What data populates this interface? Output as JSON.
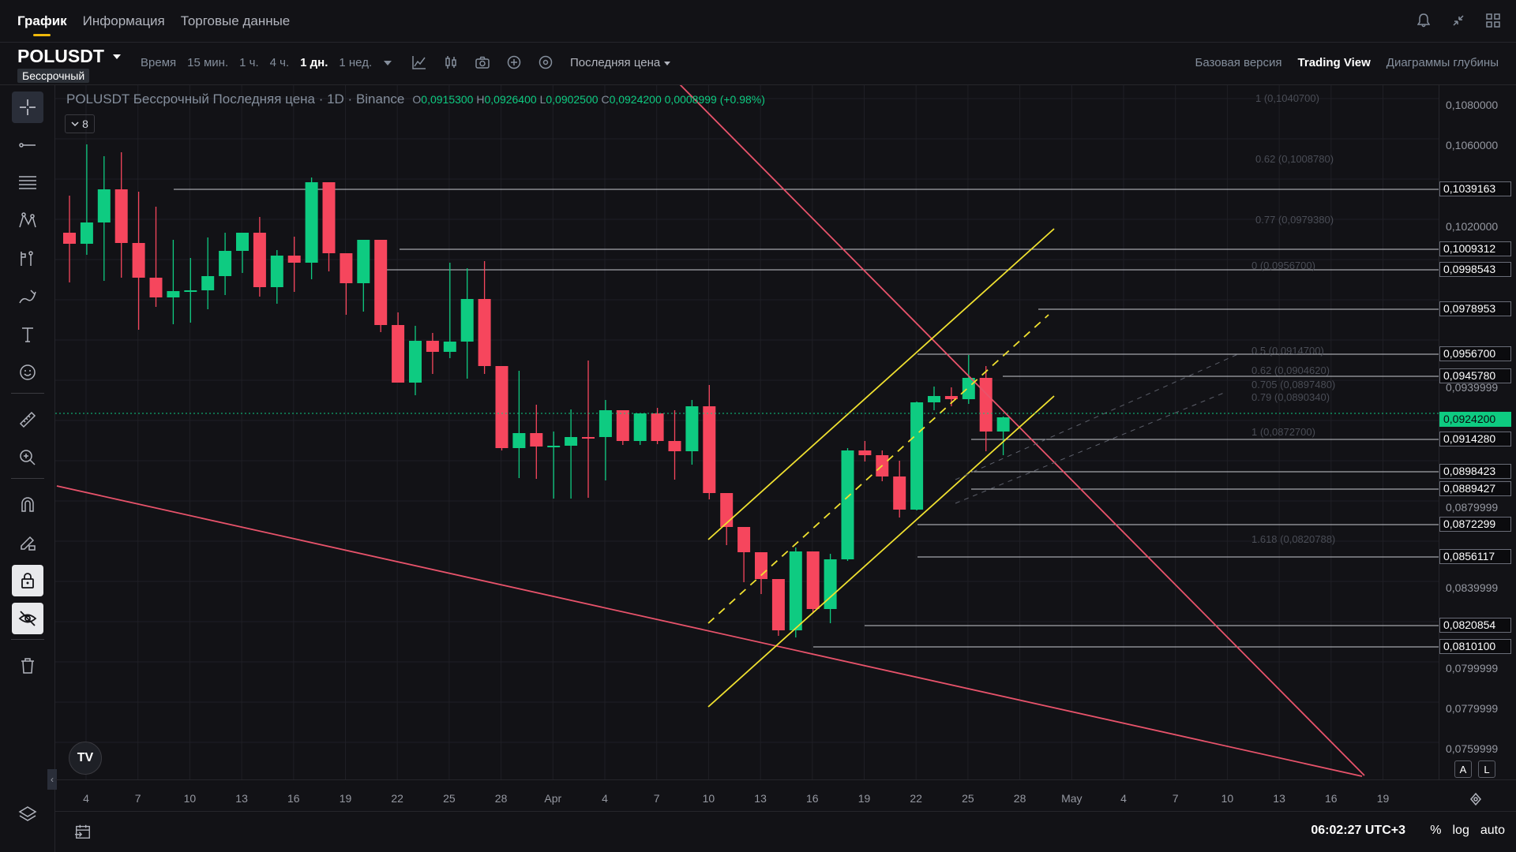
{
  "tabs": [
    {
      "label": "График",
      "active": true
    },
    {
      "label": "Информация",
      "active": false
    },
    {
      "label": "Торговые данные",
      "active": false
    }
  ],
  "top_icons": [
    "bell-icon",
    "collapse-icon",
    "grid-layout-icon"
  ],
  "symbol": {
    "name": "POLUSDT",
    "subtitle": "Бессрочный"
  },
  "timeframes": {
    "label": "Время",
    "items": [
      {
        "label": "15 мин.",
        "active": false
      },
      {
        "label": "1 ч.",
        "active": false
      },
      {
        "label": "4 ч.",
        "active": false
      },
      {
        "label": "1 дн.",
        "active": true
      },
      {
        "label": "1 нед.",
        "active": false
      }
    ]
  },
  "price_source": "Последняя цена",
  "views": [
    {
      "label": "Базовая версия",
      "active": false
    },
    {
      "label": "Trading View",
      "active": true
    },
    {
      "label": "Диаграммы глубины",
      "active": false
    }
  ],
  "legend": {
    "title": "POLUSDT Бессрочный Последняя цена · 1D · Binance",
    "o_key": "O",
    "o": "0,0915300",
    "h_key": "H",
    "h": "0,0926400",
    "l_key": "L",
    "l": "0,0902500",
    "c_key": "C",
    "c": "0,0924200",
    "change": "0,0008999 (+0.98%)",
    "indicators_count": "8"
  },
  "price_axis_labels": [
    "0,1080000",
    "0,1060000",
    "0,1020000",
    "0,0939999",
    "0,0879999",
    "0,0839999",
    "0,0799999",
    "0,0779999",
    "0,0759999"
  ],
  "price_boxes": [
    {
      "label": "0,1039163",
      "current": false
    },
    {
      "label": "0,1009312",
      "current": false
    },
    {
      "label": "0,0998543",
      "current": false
    },
    {
      "label": "0,0978953",
      "current": false
    },
    {
      "label": "0,0956700",
      "current": false
    },
    {
      "label": "0,0945780",
      "current": false
    },
    {
      "label": "0,0924200",
      "current": true
    },
    {
      "label": "0,0914280",
      "current": false
    },
    {
      "label": "0,0898423",
      "current": false
    },
    {
      "label": "0,0889427",
      "current": false
    },
    {
      "label": "0,0872299",
      "current": false
    },
    {
      "label": "0,0856117",
      "current": false
    },
    {
      "label": "0,0820854",
      "current": false
    },
    {
      "label": "0,0810100",
      "current": false
    }
  ],
  "fib_labels": [
    "1 (0,1040700)",
    "0.62 (0,1008780)",
    "0.77 (0,0979380)",
    "0 (0,0956700)",
    "0.5 (0,0914700)",
    "0.62 (0,0904620)",
    "0.705 (0,0897480)",
    "0.79 (0,0890340)",
    "1 (0,0872700)",
    "1.618 (0,0820788)"
  ],
  "time_labels": [
    "4",
    "7",
    "10",
    "13",
    "16",
    "19",
    "22",
    "25",
    "28",
    "Apr",
    "4",
    "7",
    "10",
    "13",
    "16",
    "19",
    "22",
    "25",
    "28",
    "May",
    "4",
    "7",
    "10",
    "13",
    "16",
    "19"
  ],
  "clock": "06:02:27 UTC+3",
  "axis_modes": [
    "%",
    "log",
    "auto"
  ],
  "al_buttons": [
    "A",
    "L"
  ],
  "tv_logo": "TV",
  "colors": {
    "up": "#0ecb81",
    "down": "#f6465d",
    "channel": "#f0e130",
    "trend": "#e8536b",
    "accent": "#f0b90b"
  }
}
